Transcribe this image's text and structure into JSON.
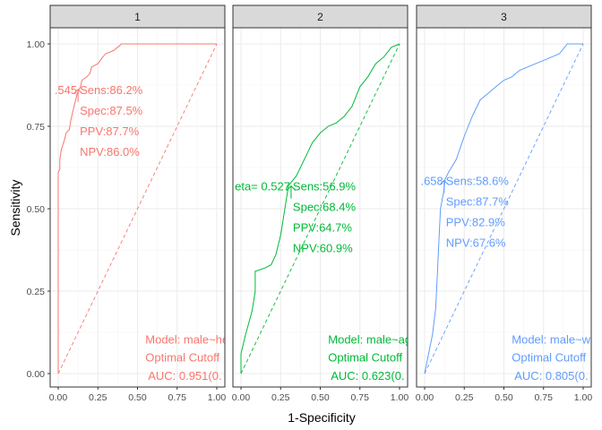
{
  "chart_data": {
    "type": "line",
    "xlabel": "1-Specificity",
    "ylabel": "Sensitivity",
    "xlim": [
      0,
      1
    ],
    "ylim": [
      0,
      1
    ],
    "x_ticks": [
      "0.00",
      "0.25",
      "0.50",
      "0.75",
      "1.00"
    ],
    "y_ticks": [
      "0.00",
      "0.25",
      "0.50",
      "0.75",
      "1.00"
    ],
    "grid": true,
    "facets": [
      {
        "label": "1",
        "color": "#F8766D",
        "roc": [
          [
            0,
            0
          ],
          [
            0,
            0.61
          ],
          [
            0.01,
            0.62
          ],
          [
            0.01,
            0.65
          ],
          [
            0.02,
            0.68
          ],
          [
            0.04,
            0.71
          ],
          [
            0.05,
            0.73
          ],
          [
            0.07,
            0.74
          ],
          [
            0.08,
            0.77
          ],
          [
            0.09,
            0.79
          ],
          [
            0.1,
            0.81
          ],
          [
            0.12,
            0.85
          ],
          [
            0.14,
            0.87
          ],
          [
            0.15,
            0.89
          ],
          [
            0.18,
            0.9
          ],
          [
            0.2,
            0.91
          ],
          [
            0.21,
            0.93
          ],
          [
            0.25,
            0.94
          ],
          [
            0.28,
            0.96
          ],
          [
            0.3,
            0.97
          ],
          [
            0.35,
            0.98
          ],
          [
            0.4,
            1.0
          ],
          [
            1.0,
            1.0
          ]
        ],
        "cutoff_point": [
          0.125,
          0.862
        ],
        "cutoff_label": ".545",
        "metrics": [
          "Sens:86.2%",
          "Spec:87.5%",
          "PPV:87.7%",
          "NPV:86.0%"
        ],
        "model_lines": [
          "Model: male~he",
          "Optimal Cutoff",
          " AUC:  0.951(0."
        ]
      },
      {
        "label": "2",
        "color": "#00BA38",
        "roc": [
          [
            0,
            0
          ],
          [
            0,
            0.06
          ],
          [
            0.03,
            0.12
          ],
          [
            0.07,
            0.19
          ],
          [
            0.09,
            0.25
          ],
          [
            0.09,
            0.31
          ],
          [
            0.15,
            0.32
          ],
          [
            0.19,
            0.33
          ],
          [
            0.22,
            0.36
          ],
          [
            0.25,
            0.42
          ],
          [
            0.27,
            0.48
          ],
          [
            0.29,
            0.54
          ],
          [
            0.3,
            0.57
          ],
          [
            0.35,
            0.6
          ],
          [
            0.4,
            0.65
          ],
          [
            0.45,
            0.7
          ],
          [
            0.5,
            0.73
          ],
          [
            0.55,
            0.75
          ],
          [
            0.6,
            0.76
          ],
          [
            0.65,
            0.78
          ],
          [
            0.7,
            0.81
          ],
          [
            0.75,
            0.87
          ],
          [
            0.8,
            0.9
          ],
          [
            0.85,
            0.94
          ],
          [
            0.9,
            0.96
          ],
          [
            0.95,
            0.99
          ],
          [
            1.0,
            1.0
          ]
        ],
        "cutoff_point": [
          0.316,
          0.569
        ],
        "cutoff_label": "eta= 0.527",
        "metrics": [
          "Sens:56.9%",
          "Spec:68.4%",
          "PPV:64.7%",
          "NPV:60.9%"
        ],
        "model_lines": [
          "Model: male~ag",
          "Optimal Cutoff",
          " AUC:  0.623(0."
        ]
      },
      {
        "label": "3",
        "color": "#619CFF",
        "roc": [
          [
            0,
            0
          ],
          [
            0.05,
            0.12
          ],
          [
            0.07,
            0.2
          ],
          [
            0.08,
            0.3
          ],
          [
            0.09,
            0.4
          ],
          [
            0.1,
            0.5
          ],
          [
            0.12,
            0.55
          ],
          [
            0.13,
            0.59
          ],
          [
            0.15,
            0.61
          ],
          [
            0.2,
            0.65
          ],
          [
            0.25,
            0.72
          ],
          [
            0.3,
            0.78
          ],
          [
            0.35,
            0.83
          ],
          [
            0.4,
            0.85
          ],
          [
            0.45,
            0.87
          ],
          [
            0.5,
            0.89
          ],
          [
            0.55,
            0.9
          ],
          [
            0.6,
            0.92
          ],
          [
            0.65,
            0.93
          ],
          [
            0.7,
            0.94
          ],
          [
            0.75,
            0.95
          ],
          [
            0.8,
            0.96
          ],
          [
            0.85,
            0.97
          ],
          [
            0.9,
            1.0
          ],
          [
            1.0,
            1.0
          ]
        ],
        "cutoff_point": [
          0.123,
          0.586
        ],
        "cutoff_label": ".658",
        "metrics": [
          "Sens:58.6%",
          "Spec:87.7%",
          "PPV:82.9%",
          "NPV:67.6%"
        ],
        "model_lines": [
          "Model: male~w",
          "Optimal Cutoff",
          " AUC:  0.805(0."
        ]
      }
    ]
  }
}
